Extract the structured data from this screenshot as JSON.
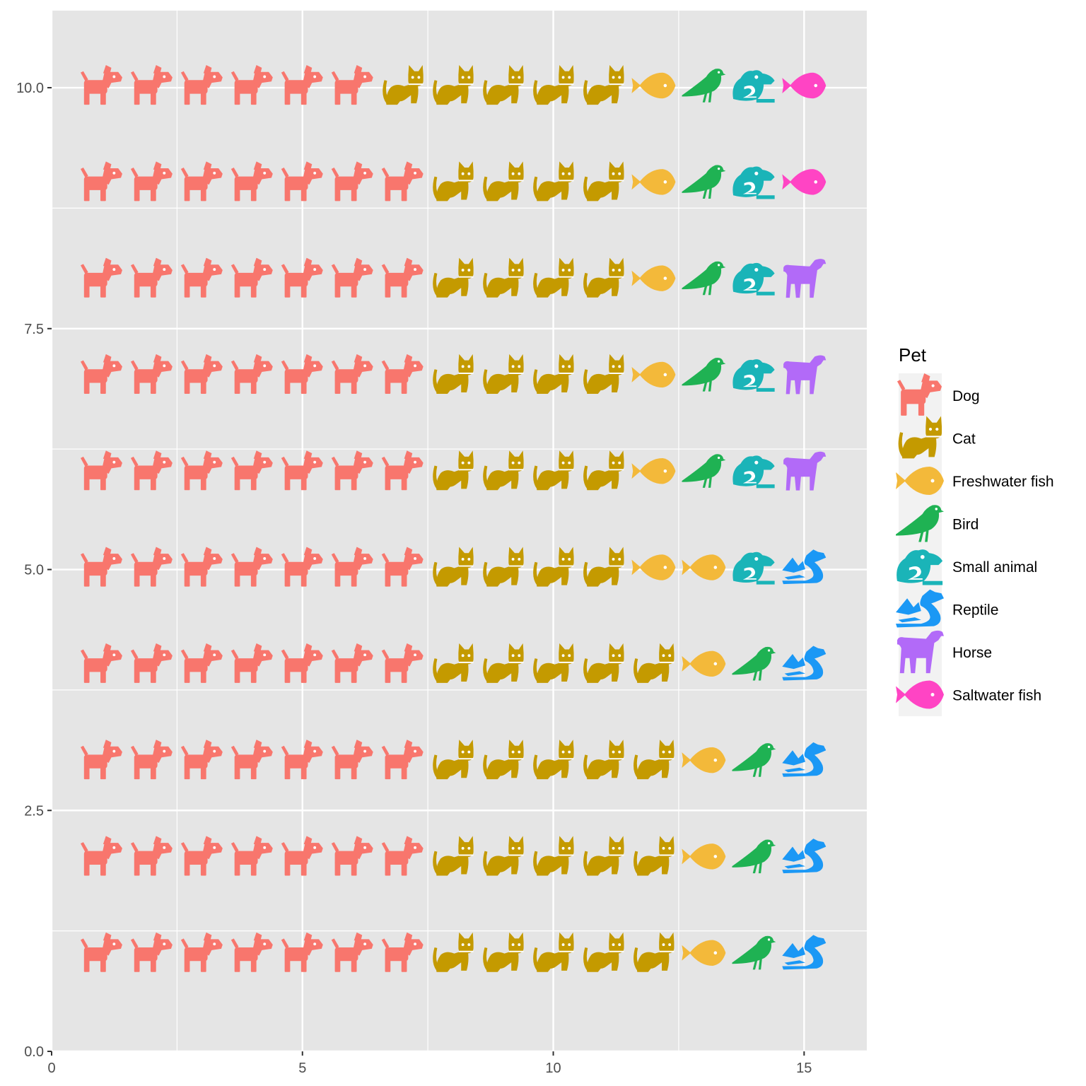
{
  "chart_data": {
    "type": "pictogram",
    "x_range": [
      0,
      16.25
    ],
    "y_range": [
      0,
      10.8
    ],
    "x_ticks": [
      0,
      5,
      10,
      15
    ],
    "x_tick_labels": [
      "0",
      "5",
      "10",
      "15"
    ],
    "y_ticks": [
      0,
      2.5,
      5,
      7.5,
      10
    ],
    "y_tick_labels": [
      "0.0",
      "2.5",
      "5.0",
      "7.5",
      "10.0"
    ],
    "grid": true,
    "legend_position": "right",
    "legend": {
      "title": "Pet",
      "entries": [
        {
          "label": "Dog",
          "icon": "dog-icon",
          "color": "#F8766D"
        },
        {
          "label": "Cat",
          "icon": "cat-icon",
          "color": "#C49A00"
        },
        {
          "label": "Freshwater fish",
          "icon": "fish-icon",
          "color": "#F3B93A"
        },
        {
          "label": "Bird",
          "icon": "bird-icon",
          "color": "#1FB253"
        },
        {
          "label": "Small animal",
          "icon": "frog-icon",
          "color": "#1AB4B8"
        },
        {
          "label": "Reptile",
          "icon": "dragon-icon",
          "color": "#1B98F5"
        },
        {
          "label": "Horse",
          "icon": "horse-icon",
          "color": "#B26AF8"
        },
        {
          "label": "Saltwater fish",
          "icon": "fish-icon",
          "color": "#FF44C4"
        }
      ]
    },
    "rows": [
      {
        "y": 1,
        "counts": [
          7,
          5,
          1,
          1,
          0,
          1,
          0,
          0
        ]
      },
      {
        "y": 2,
        "counts": [
          7,
          5,
          1,
          1,
          0,
          1,
          0,
          0
        ]
      },
      {
        "y": 3,
        "counts": [
          7,
          5,
          1,
          1,
          0,
          1,
          0,
          0
        ]
      },
      {
        "y": 4,
        "counts": [
          7,
          5,
          1,
          1,
          0,
          1,
          0,
          0
        ]
      },
      {
        "y": 5,
        "counts": [
          7,
          4,
          2,
          0,
          1,
          1,
          0,
          0
        ]
      },
      {
        "y": 6,
        "counts": [
          7,
          4,
          1,
          1,
          1,
          0,
          1,
          0
        ]
      },
      {
        "y": 7,
        "counts": [
          7,
          4,
          1,
          1,
          1,
          0,
          1,
          0
        ]
      },
      {
        "y": 8,
        "counts": [
          7,
          4,
          1,
          1,
          1,
          0,
          1,
          0
        ]
      },
      {
        "y": 9,
        "counts": [
          7,
          4,
          1,
          1,
          1,
          0,
          0,
          1
        ]
      },
      {
        "y": 10,
        "counts": [
          6,
          5,
          1,
          1,
          1,
          0,
          0,
          1
        ]
      }
    ]
  }
}
